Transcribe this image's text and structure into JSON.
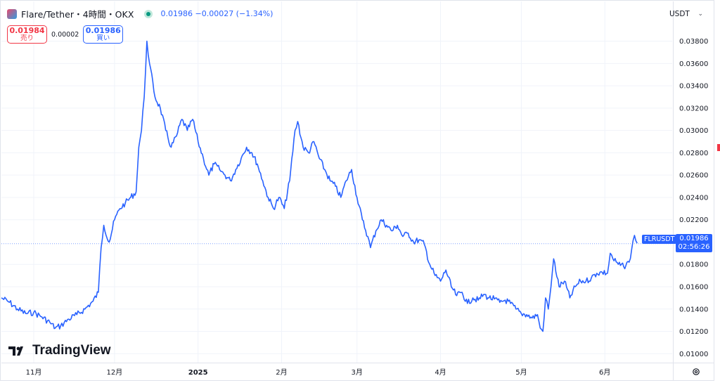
{
  "header": {
    "title": "Flare/Tether・4時間・OKX",
    "quote": "0.01986  −0.00027  (−1.34%)"
  },
  "trade": {
    "sell_price": "0.01984",
    "sell_label": "売り",
    "spread": "0.00002",
    "buy_price": "0.01986",
    "buy_label": "買い"
  },
  "currency_selector": "USDT",
  "brand": "TradingView",
  "price_label": {
    "symbol": "FLRUSDT",
    "price": "0.01986",
    "countdown": "02:56:26"
  },
  "colors": {
    "line": "#2962ff",
    "up": "#089981",
    "down": "#f23645",
    "grid": "#f0f3fa",
    "text": "#131722"
  },
  "chart_data": {
    "type": "line",
    "title": "Flare/Tether・4時間・OKX",
    "y_axis_ticks": [
      "0.03800",
      "0.03600",
      "0.03400",
      "0.03200",
      "0.03000",
      "0.02800",
      "0.02600",
      "0.02400",
      "0.02200",
      "0.01800",
      "0.01600",
      "0.01400",
      "0.01200",
      "0.01000"
    ],
    "ylim": [
      0.0092,
      0.0398
    ],
    "x_axis_ticks": [
      {
        "label": "11月",
        "date": "2024-11-01"
      },
      {
        "label": "12月",
        "date": "2024-12-01"
      },
      {
        "label": "2025",
        "date": "2025-01-01",
        "bold": true
      },
      {
        "label": "2月",
        "date": "2025-02-01"
      },
      {
        "label": "3月",
        "date": "2025-03-01"
      },
      {
        "label": "4月",
        "date": "2025-04-01"
      },
      {
        "label": "5月",
        "date": "2025-05-01"
      },
      {
        "label": "6月",
        "date": "2025-06-01"
      }
    ],
    "xlim": [
      "2024-10-20",
      "2025-06-26"
    ],
    "current_price": 0.01986,
    "grid": true,
    "series": [
      {
        "points": [
          [
            "2024-10-20",
            0.015
          ],
          [
            "2024-10-23",
            0.0146
          ],
          [
            "2024-10-26",
            0.014
          ],
          [
            "2024-10-29",
            0.0136
          ],
          [
            "2024-11-01",
            0.0137
          ],
          [
            "2024-11-04",
            0.0133
          ],
          [
            "2024-11-07",
            0.0128
          ],
          [
            "2024-11-09",
            0.0123
          ],
          [
            "2024-11-11",
            0.0125
          ],
          [
            "2024-11-14",
            0.0131
          ],
          [
            "2024-11-17",
            0.0135
          ],
          [
            "2024-11-20",
            0.014
          ],
          [
            "2024-11-23",
            0.0147
          ],
          [
            "2024-11-25",
            0.0155
          ],
          [
            "2024-11-26",
            0.0195
          ],
          [
            "2024-11-27",
            0.0215
          ],
          [
            "2024-11-29",
            0.02
          ],
          [
            "2024-12-01",
            0.022
          ],
          [
            "2024-12-03",
            0.023
          ],
          [
            "2024-12-05",
            0.0235
          ],
          [
            "2024-12-07",
            0.024
          ],
          [
            "2024-12-09",
            0.0245
          ],
          [
            "2024-12-10",
            0.0285
          ],
          [
            "2024-12-11",
            0.03
          ],
          [
            "2024-12-12",
            0.033
          ],
          [
            "2024-12-13",
            0.038
          ],
          [
            "2024-12-14",
            0.036
          ],
          [
            "2024-12-16",
            0.033
          ],
          [
            "2024-12-18",
            0.032
          ],
          [
            "2024-12-20",
            0.03
          ],
          [
            "2024-12-22",
            0.0285
          ],
          [
            "2024-12-24",
            0.0295
          ],
          [
            "2024-12-26",
            0.031
          ],
          [
            "2024-12-28",
            0.03
          ],
          [
            "2024-12-30",
            0.031
          ],
          [
            "2025-01-01",
            0.029
          ],
          [
            "2025-01-03",
            0.0275
          ],
          [
            "2025-01-05",
            0.026
          ],
          [
            "2025-01-07",
            0.027
          ],
          [
            "2025-01-09",
            0.0265
          ],
          [
            "2025-01-11",
            0.026
          ],
          [
            "2025-01-13",
            0.0255
          ],
          [
            "2025-01-15",
            0.0265
          ],
          [
            "2025-01-17",
            0.0275
          ],
          [
            "2025-01-19",
            0.0285
          ],
          [
            "2025-01-21",
            0.028
          ],
          [
            "2025-01-23",
            0.027
          ],
          [
            "2025-01-25",
            0.0255
          ],
          [
            "2025-01-27",
            0.024
          ],
          [
            "2025-01-29",
            0.023
          ],
          [
            "2025-01-31",
            0.024
          ],
          [
            "2025-02-02",
            0.023
          ],
          [
            "2025-02-04",
            0.0255
          ],
          [
            "2025-02-06",
            0.03
          ],
          [
            "2025-02-07",
            0.0308
          ],
          [
            "2025-02-09",
            0.0285
          ],
          [
            "2025-02-11",
            0.028
          ],
          [
            "2025-02-13",
            0.029
          ],
          [
            "2025-02-15",
            0.0275
          ],
          [
            "2025-02-17",
            0.0265
          ],
          [
            "2025-02-19",
            0.0255
          ],
          [
            "2025-02-21",
            0.025
          ],
          [
            "2025-02-23",
            0.024
          ],
          [
            "2025-02-25",
            0.0255
          ],
          [
            "2025-02-27",
            0.0265
          ],
          [
            "2025-03-01",
            0.024
          ],
          [
            "2025-03-03",
            0.022
          ],
          [
            "2025-03-05",
            0.0205
          ],
          [
            "2025-03-06",
            0.0195
          ],
          [
            "2025-03-08",
            0.021
          ],
          [
            "2025-03-10",
            0.022
          ],
          [
            "2025-03-12",
            0.0215
          ],
          [
            "2025-03-14",
            0.021
          ],
          [
            "2025-03-16",
            0.0215
          ],
          [
            "2025-03-18",
            0.0205
          ],
          [
            "2025-03-20",
            0.0208
          ],
          [
            "2025-03-22",
            0.02
          ],
          [
            "2025-03-24",
            0.0202
          ],
          [
            "2025-03-26",
            0.0198
          ],
          [
            "2025-03-28",
            0.018
          ],
          [
            "2025-03-30",
            0.017
          ],
          [
            "2025-04-01",
            0.0165
          ],
          [
            "2025-04-03",
            0.0175
          ],
          [
            "2025-04-05",
            0.016
          ],
          [
            "2025-04-07",
            0.0152
          ],
          [
            "2025-04-09",
            0.0155
          ],
          [
            "2025-04-11",
            0.0145
          ],
          [
            "2025-04-13",
            0.015
          ],
          [
            "2025-04-15",
            0.0148
          ],
          [
            "2025-04-17",
            0.0153
          ],
          [
            "2025-04-19",
            0.015
          ],
          [
            "2025-04-21",
            0.0149
          ],
          [
            "2025-04-23",
            0.0146
          ],
          [
            "2025-04-25",
            0.0148
          ],
          [
            "2025-04-27",
            0.0145
          ],
          [
            "2025-04-29",
            0.014
          ],
          [
            "2025-05-01",
            0.0136
          ],
          [
            "2025-05-03",
            0.0135
          ],
          [
            "2025-05-05",
            0.0132
          ],
          [
            "2025-05-07",
            0.0135
          ],
          [
            "2025-05-08",
            0.0123
          ],
          [
            "2025-05-09",
            0.012
          ],
          [
            "2025-05-10",
            0.015
          ],
          [
            "2025-05-11",
            0.014
          ],
          [
            "2025-05-12",
            0.016
          ],
          [
            "2025-05-13",
            0.0185
          ],
          [
            "2025-05-15",
            0.016
          ],
          [
            "2025-05-17",
            0.0165
          ],
          [
            "2025-05-19",
            0.015
          ],
          [
            "2025-05-21",
            0.016
          ],
          [
            "2025-05-23",
            0.0165
          ],
          [
            "2025-05-25",
            0.0165
          ],
          [
            "2025-05-27",
            0.0168
          ],
          [
            "2025-05-29",
            0.0172
          ],
          [
            "2025-05-31",
            0.0173
          ],
          [
            "2025-06-02",
            0.0172
          ],
          [
            "2025-06-03",
            0.019
          ],
          [
            "2025-06-04",
            0.0185
          ],
          [
            "2025-06-06",
            0.018
          ],
          [
            "2025-06-08",
            0.0178
          ],
          [
            "2025-06-10",
            0.0182
          ],
          [
            "2025-06-11",
            0.0194
          ],
          [
            "2025-06-12",
            0.0206
          ],
          [
            "2025-06-13",
            0.0199
          ]
        ]
      }
    ]
  }
}
